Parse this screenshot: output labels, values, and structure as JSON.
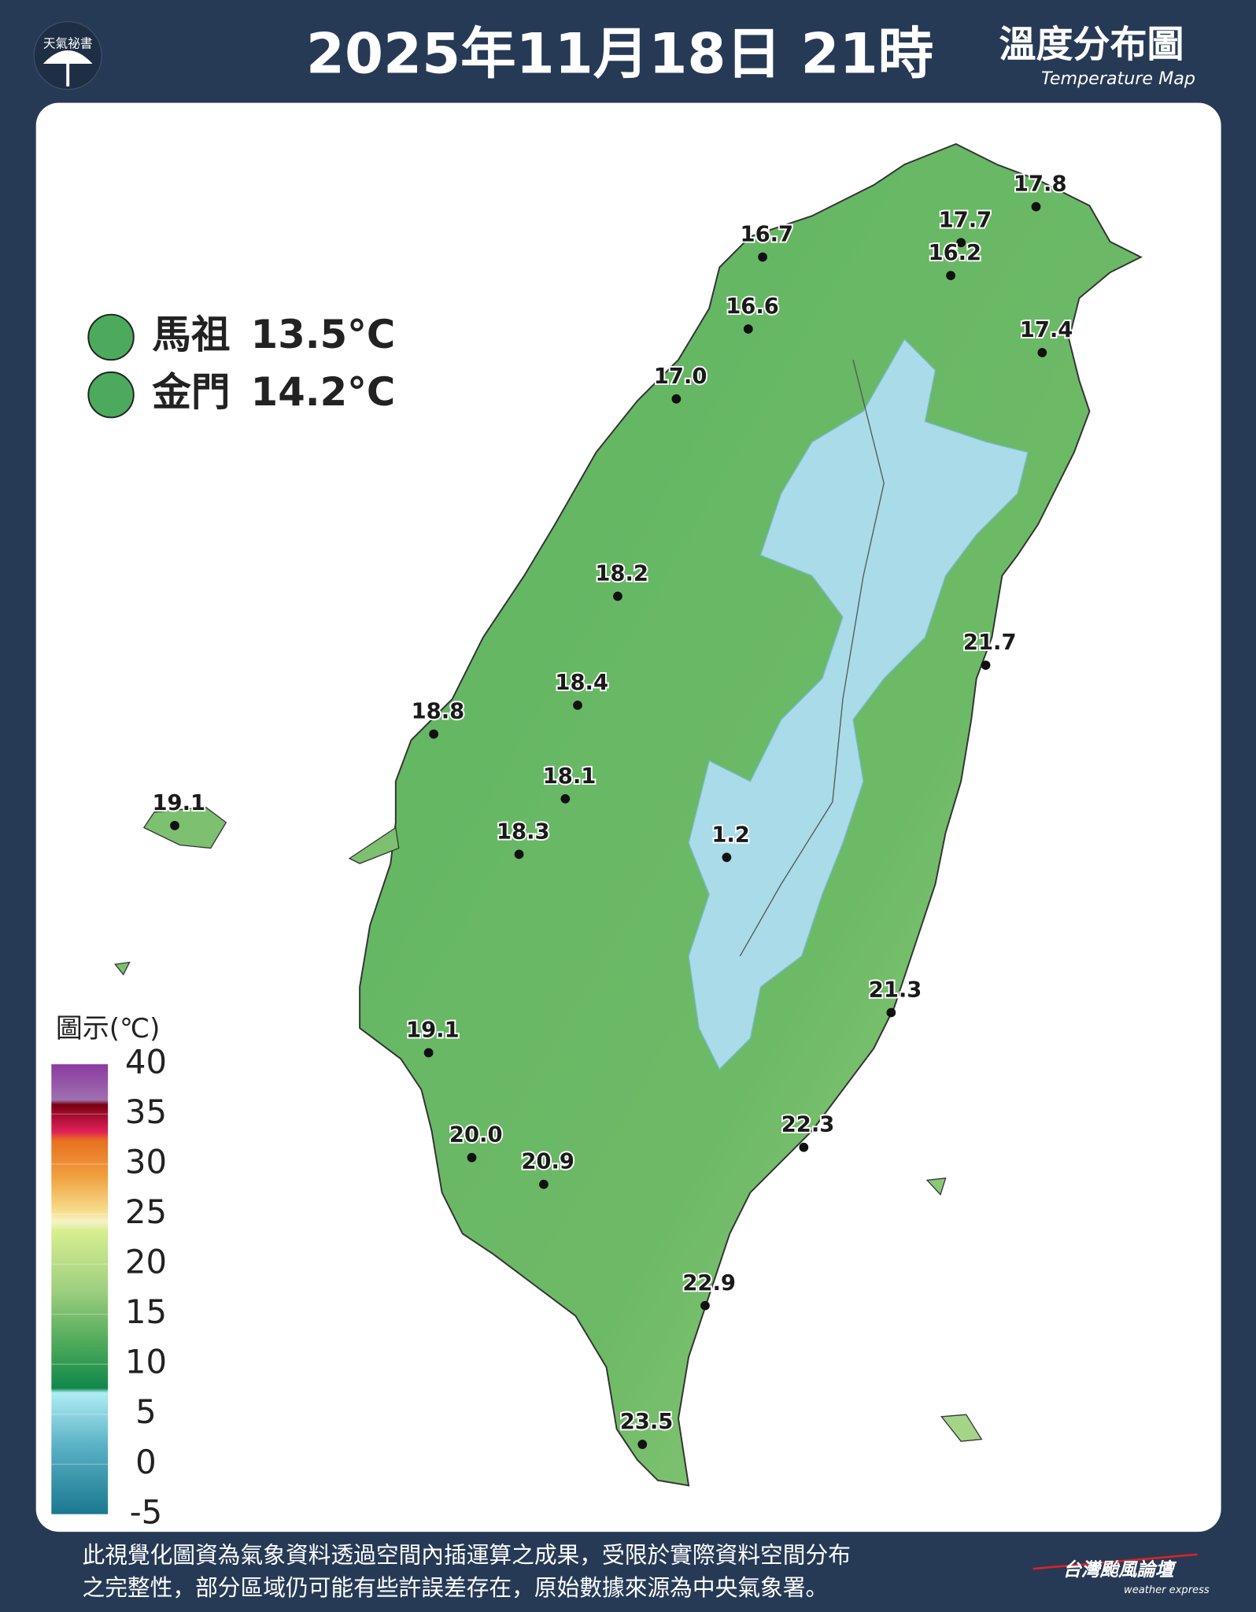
{
  "header": {
    "logo": "天氣祕書",
    "title": "2025年11月18日 21時",
    "map_title": "溫度分布圖",
    "map_subtitle": "Temperature Map"
  },
  "outlying": [
    {
      "name": "馬祖",
      "value": "13.5°C"
    },
    {
      "name": "金門",
      "value": "14.2°C"
    }
  ],
  "stations": [
    "17.8",
    "17.7",
    "16.2",
    "16.7",
    "16.6",
    "17.4",
    "17.0",
    "18.2",
    "21.7",
    "18.4",
    "18.8",
    "18.1",
    "19.1",
    "18.3",
    "1.2",
    "21.3",
    "19.1",
    "20.0",
    "20.9",
    "22.3",
    "22.9",
    "23.5"
  ],
  "legend": {
    "title": "圖示(℃)",
    "range": [
      -5,
      40
    ],
    "ticks": [
      40,
      35,
      30,
      25,
      20,
      15,
      10,
      5,
      0,
      -5
    ]
  },
  "footer": {
    "lines": [
      "此視覺化圖資為氣象資料透過空間內插運算之成果，受限於實際資料空間分布",
      "之完整性，部分區域仍可能有些許誤差存在，原始數據來源為中央氣象署。"
    ],
    "brand": "台灣颱風論壇",
    "brand_sub": "weather express"
  }
}
